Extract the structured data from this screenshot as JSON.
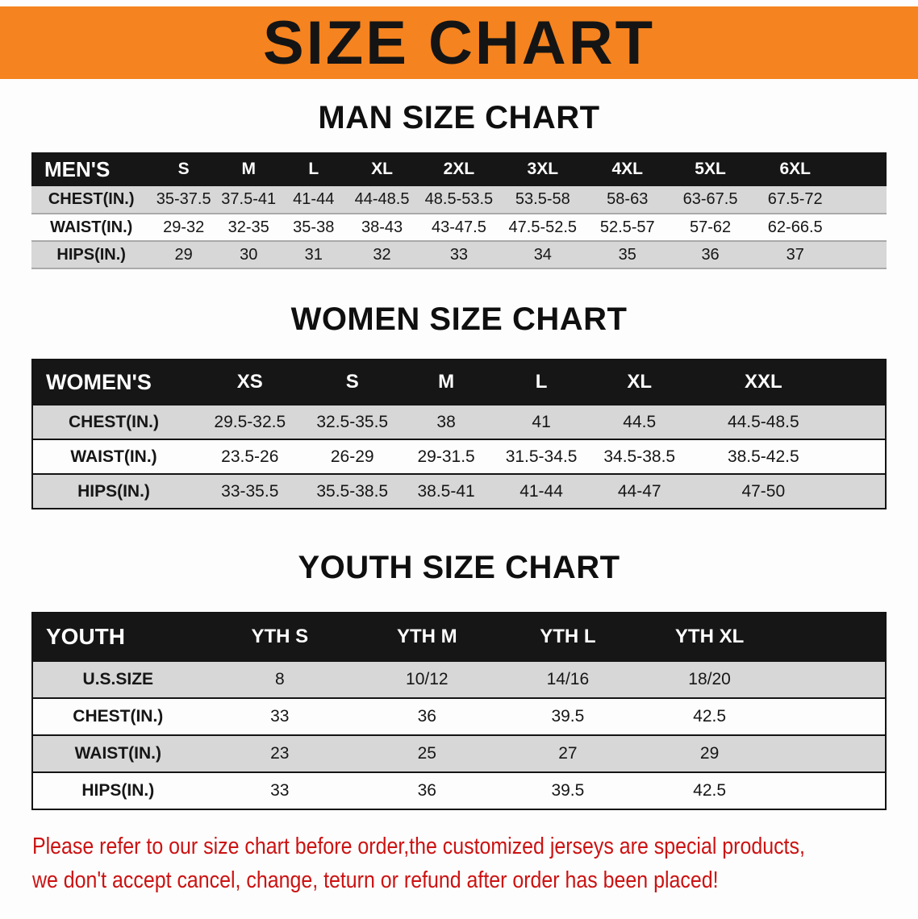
{
  "colors": {
    "banner_orange": "#f5831f",
    "header_black": "#161616",
    "row_shaded_gray": "#d7d7d7",
    "warning_red": "#cc1212",
    "text_black": "#141414"
  },
  "banner": {
    "title": "SIZE CHART"
  },
  "sections": {
    "men": {
      "heading": "MAN SIZE CHART",
      "table": {
        "header": [
          "MEN'S",
          "S",
          "M",
          "L",
          "XL",
          "2XL",
          "3XL",
          "4XL",
          "5XL",
          "6XL"
        ],
        "rows": [
          {
            "label": "CHEST(IN.)",
            "values": [
              "35-37.5",
              "37.5-41",
              "41-44",
              "44-48.5",
              "48.5-53.5",
              "53.5-58",
              "58-63",
              "63-67.5",
              "67.5-72"
            ]
          },
          {
            "label": "WAIST(IN.)",
            "values": [
              "29-32",
              "32-35",
              "35-38",
              "38-43",
              "43-47.5",
              "47.5-52.5",
              "52.5-57",
              "57-62",
              "62-66.5"
            ]
          },
          {
            "label": "HIPS(IN.)",
            "values": [
              "29",
              "30",
              "31",
              "32",
              "33",
              "34",
              "35",
              "36",
              "37"
            ]
          }
        ]
      }
    },
    "women": {
      "heading": "WOMEN SIZE CHART",
      "table": {
        "header": [
          "WOMEN'S",
          "XS",
          "S",
          "M",
          "L",
          "XL",
          "XXL"
        ],
        "rows": [
          {
            "label": "CHEST(IN.)",
            "values": [
              "29.5-32.5",
              "32.5-35.5",
              "38",
              "41",
              "44.5",
              "44.5-48.5"
            ]
          },
          {
            "label": "WAIST(IN.)",
            "values": [
              "23.5-26",
              "26-29",
              "29-31.5",
              "31.5-34.5",
              "34.5-38.5",
              "38.5-42.5"
            ]
          },
          {
            "label": "HIPS(IN.)",
            "values": [
              "33-35.5",
              "35.5-38.5",
              "38.5-41",
              "41-44",
              "44-47",
              "47-50"
            ]
          }
        ]
      }
    },
    "youth": {
      "heading": "YOUTH SIZE CHART",
      "table": {
        "header": [
          "YOUTH",
          "YTH S",
          "YTH M",
          "YTH L",
          "YTH XL"
        ],
        "rows": [
          {
            "label": "U.S.SIZE",
            "values": [
              "8",
              "10/12",
              "14/16",
              "18/20"
            ]
          },
          {
            "label": "CHEST(IN.)",
            "values": [
              "33",
              "36",
              "39.5",
              "42.5"
            ]
          },
          {
            "label": "WAIST(IN.)",
            "values": [
              "23",
              "25",
              "27",
              "29"
            ]
          },
          {
            "label": "HIPS(IN.)",
            "values": [
              "33",
              "36",
              "39.5",
              "42.5"
            ]
          }
        ]
      }
    }
  },
  "footer": {
    "line1": "Please refer to our size chart before order,the customized jerseys are special products,",
    "line2": "we don't accept cancel, change, teturn or refund after order has been placed!"
  }
}
